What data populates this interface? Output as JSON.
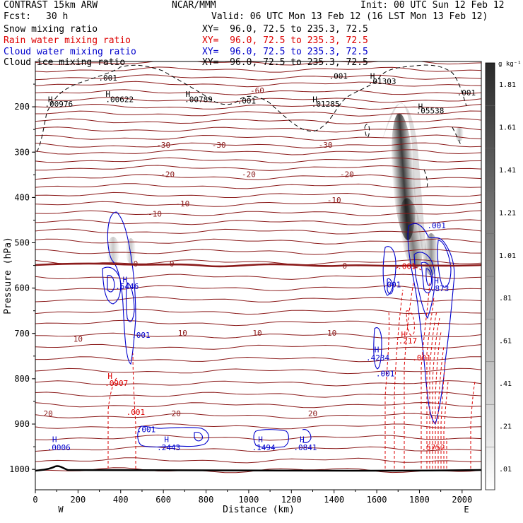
{
  "header": {
    "model": "CONTRAST 15km ARW",
    "org": "NCAR/MMM",
    "init": "Init: 00 UTC Sun 12 Feb 12",
    "fcst_label": "Fcst:",
    "fcst_value": "30 h",
    "valid": "Valid: 06 UTC Mon 13 Feb 12 (16 LST Mon 13 Feb 12)",
    "fields": [
      {
        "name": "Snow mixing ratio",
        "xy": "XY=  96.0, 72.5 to 235.3, 72.5",
        "color": "#000000"
      },
      {
        "name": "Rain water mixing ratio",
        "xy": "XY=  96.0, 72.5 to 235.3, 72.5",
        "color": "#dd0000"
      },
      {
        "name": "Cloud water mixing ratio",
        "xy": "XY=  96.0, 72.5 to 235.3, 72.5",
        "color": "#0000cc"
      },
      {
        "name": "Cloud ice mixing ratio",
        "xy": "XY=  96.0, 72.5 to 235.3, 72.5",
        "color": "#000000"
      }
    ]
  },
  "chart_data": {
    "type": "contour cross-section",
    "xlabel": "Distance (km)",
    "ylabel": "Pressure (hPa)",
    "x_ticks": [
      0,
      200,
      400,
      600,
      800,
      1000,
      1200,
      1400,
      1600,
      1800,
      2000
    ],
    "y_ticks": [
      200,
      300,
      400,
      500,
      600,
      700,
      800,
      900,
      1000
    ],
    "xlim": [
      0,
      2090
    ],
    "ylim": [
      1045,
      100
    ],
    "left_end": "W",
    "right_end": "E",
    "colorbar": {
      "unit": "g kg⁻¹",
      "levels": [
        ".01",
        ".21",
        ".41",
        ".61",
        ".81",
        "1.01",
        "1.21",
        "1.41",
        "1.61",
        "1.81"
      ]
    },
    "temperature_labels": [
      {
        "text": "-60",
        "x": 1040,
        "p": 170
      },
      {
        "text": "-30",
        "x": 600,
        "p": 290
      },
      {
        "text": "-30",
        "x": 860,
        "p": 290
      },
      {
        "text": "-30",
        "x": 1360,
        "p": 290
      },
      {
        "text": "-20",
        "x": 620,
        "p": 355
      },
      {
        "text": "-20",
        "x": 1000,
        "p": 355
      },
      {
        "text": "-20",
        "x": 1460,
        "p": 355
      },
      {
        "text": "-10",
        "x": 560,
        "p": 442
      },
      {
        "text": "-10",
        "x": 690,
        "p": 420
      },
      {
        "text": "-10",
        "x": 1400,
        "p": 412
      },
      {
        "text": "0",
        "x": 470,
        "p": 552
      },
      {
        "text": "0",
        "x": 640,
        "p": 552
      },
      {
        "text": "0",
        "x": 1450,
        "p": 557
      },
      {
        "text": "10",
        "x": 200,
        "p": 718
      },
      {
        "text": "10",
        "x": 690,
        "p": 705
      },
      {
        "text": "10",
        "x": 1040,
        "p": 705
      },
      {
        "text": "10",
        "x": 1390,
        "p": 705
      },
      {
        "text": "20",
        "x": 60,
        "p": 883
      },
      {
        "text": "20",
        "x": 660,
        "p": 883
      },
      {
        "text": "20",
        "x": 1300,
        "p": 883
      }
    ],
    "black_labels": [
      {
        "text": "H",
        "x": 70,
        "p": 190
      },
      {
        "text": ".00976",
        "x": 110,
        "p": 200
      },
      {
        "text": "H",
        "x": 340,
        "p": 178
      },
      {
        "text": ".00622",
        "x": 395,
        "p": 190
      },
      {
        "text": "H",
        "x": 715,
        "p": 178
      },
      {
        "text": ".00789",
        "x": 765,
        "p": 190
      },
      {
        "text": ".001",
        "x": 340,
        "p": 142
      },
      {
        "text": ".001",
        "x": 990,
        "p": 193
      },
      {
        "text": "H",
        "x": 1310,
        "p": 190
      },
      {
        "text": ".01285",
        "x": 1360,
        "p": 200
      },
      {
        "text": ".001",
        "x": 1420,
        "p": 138
      },
      {
        "text": "H",
        "x": 1580,
        "p": 138
      },
      {
        "text": ".01303",
        "x": 1625,
        "p": 150
      },
      {
        "text": "H",
        "x": 1805,
        "p": 205
      },
      {
        "text": ".05538",
        "x": 1850,
        "p": 215
      },
      {
        "text": ".001",
        "x": 2020,
        "p": 175
      }
    ],
    "red_labels": [
      {
        "text": "H",
        "x": 350,
        "p": 800
      },
      {
        "text": ".0907",
        "x": 380,
        "p": 816
      },
      {
        "text": ".001",
        "x": 470,
        "p": 880
      },
      {
        "text": "H",
        "x": 1725,
        "p": 708
      },
      {
        "text": ".217",
        "x": 1745,
        "p": 722
      },
      {
        "text": ".001",
        "x": 1740,
        "p": 558
      },
      {
        "text": ".001",
        "x": 1810,
        "p": 760
      },
      {
        "text": ".5752",
        "x": 1865,
        "p": 958
      }
    ],
    "blue_labels": [
      {
        "text": "H",
        "x": 420,
        "p": 587
      },
      {
        "text": ".5446",
        "x": 430,
        "p": 602
      },
      {
        "text": ".001",
        "x": 495,
        "p": 710
      },
      {
        "text": "H",
        "x": 1600,
        "p": 742
      },
      {
        "text": ".4234",
        "x": 1605,
        "p": 760
      },
      {
        "text": ".001",
        "x": 1640,
        "p": 795
      },
      {
        "text": ".001",
        "x": 1670,
        "p": 598
      },
      {
        "text": "H",
        "x": 1880,
        "p": 590
      },
      {
        "text": ".873",
        "x": 1895,
        "p": 607
      },
      {
        "text": ".001",
        "x": 1880,
        "p": 468
      },
      {
        "text": "H",
        "x": 90,
        "p": 940
      },
      {
        "text": ".0006",
        "x": 110,
        "p": 958
      },
      {
        "text": ".001",
        "x": 520,
        "p": 918
      },
      {
        "text": "H",
        "x": 615,
        "p": 940
      },
      {
        "text": ".2443",
        "x": 625,
        "p": 958
      },
      {
        "text": "H",
        "x": 1055,
        "p": 940
      },
      {
        "text": ".1494",
        "x": 1070,
        "p": 958
      },
      {
        "text": "H",
        "x": 1250,
        "p": 940
      },
      {
        "text": ".0841",
        "x": 1265,
        "p": 958
      }
    ]
  }
}
